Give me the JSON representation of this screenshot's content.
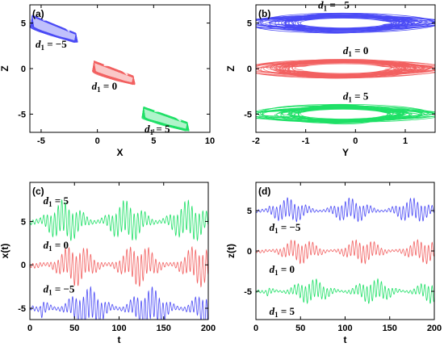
{
  "figure": {
    "panels": [
      "(a)",
      "(b)",
      "(c)",
      "(d)"
    ]
  },
  "colors": {
    "blue": "#4a4af5",
    "red": "#f26060",
    "green": "#1ee066"
  },
  "chart_data": [
    {
      "id": "a",
      "type": "scatter",
      "panel_label": "(a)",
      "xlabel": "X",
      "ylabel": "Z",
      "xlim": [
        -6,
        10
      ],
      "ylim": [
        -7,
        7
      ],
      "xticks": [
        -5,
        0,
        5,
        10
      ],
      "yticks": [
        -5,
        0,
        5
      ],
      "series": [
        {
          "name": "d1 = -5",
          "color": "#4a4af5",
          "center": [
            -3.8,
            5
          ],
          "x_range": [
            -5.8,
            -1.9
          ],
          "z_range": [
            3.0,
            6.6
          ]
        },
        {
          "name": "d1 = 0",
          "color": "#f26060",
          "center": [
            1.5,
            0
          ],
          "x_range": [
            -0.3,
            3.2
          ],
          "z_range": [
            -1.6,
            1.4
          ]
        },
        {
          "name": "d1 = 5",
          "color": "#1ee066",
          "center": [
            6.2,
            -5
          ],
          "x_range": [
            4.1,
            8.0
          ],
          "z_range": [
            -6.7,
            -3.6
          ]
        }
      ],
      "annotations": [
        {
          "text": "d1 = −5",
          "at": [
            -5.5,
            2.3
          ]
        },
        {
          "text": "d1 = 0",
          "at": [
            -0.5,
            -2.3
          ]
        },
        {
          "text": "d1 = 5",
          "at": [
            4.2,
            -7.0
          ]
        }
      ]
    },
    {
      "id": "b",
      "type": "line",
      "panel_label": "(b)",
      "xlabel": "Y",
      "ylabel": "Z",
      "xlim": [
        -2,
        1.6
      ],
      "ylim": [
        -7,
        7
      ],
      "xticks": [
        -2,
        -1,
        0,
        1
      ],
      "yticks": [
        -5,
        0,
        5
      ],
      "series": [
        {
          "name": "d1 = -5",
          "color": "#4a4af5",
          "z_center": 5,
          "y_range": [
            -1.75,
            1.3
          ]
        },
        {
          "name": "d1 = 0",
          "color": "#f26060",
          "z_center": 0,
          "y_range": [
            -1.75,
            1.3
          ]
        },
        {
          "name": "d1 = 5",
          "color": "#1ee066",
          "z_center": -5,
          "y_range": [
            -1.75,
            1.3
          ]
        }
      ],
      "annotations": [
        {
          "text": "d1 = −5",
          "at": [
            -0.75,
            6.6
          ]
        },
        {
          "text": "d1 = 0",
          "at": [
            -0.25,
            1.6
          ]
        },
        {
          "text": "d1 = 5",
          "at": [
            -0.25,
            -3.4
          ]
        }
      ]
    },
    {
      "id": "c",
      "type": "line",
      "panel_label": "(c)",
      "xlabel": "t",
      "ylabel": "x(t)",
      "xlim": [
        0,
        200
      ],
      "ylim": [
        -6.3,
        9.5
      ],
      "xticks": [
        0,
        50,
        100,
        150,
        200
      ],
      "yticks": [
        -5,
        0,
        5
      ],
      "series": [
        {
          "name": "d1 = 5",
          "color": "#1ee066",
          "offset": 5,
          "amplitude": 2.2
        },
        {
          "name": "d1 = 0",
          "color": "#f26060",
          "offset": 0,
          "amplitude": 2.2
        },
        {
          "name": "d1 = -5",
          "color": "#4a4af5",
          "offset": -5,
          "amplitude": 2.2
        }
      ],
      "annotations": [
        {
          "text": "d1 = 5",
          "at": [
            15,
            7.0
          ]
        },
        {
          "text": "d1 = 0",
          "at": [
            15,
            1.9
          ]
        },
        {
          "text": "d1 = −5",
          "at": [
            15,
            -3.2
          ]
        }
      ]
    },
    {
      "id": "d",
      "type": "line",
      "panel_label": "(d)",
      "xlabel": "t",
      "ylabel": "z(t)",
      "xlim": [
        0,
        200
      ],
      "ylim": [
        -8.5,
        8.5
      ],
      "xticks": [
        0,
        50,
        100,
        150,
        200
      ],
      "yticks": [
        -5,
        0,
        5
      ],
      "series": [
        {
          "name": "d1 = -5",
          "color": "#4a4af5",
          "offset": 5,
          "amplitude": 1.4
        },
        {
          "name": "d1 = 0",
          "color": "#f26060",
          "offset": 0,
          "amplitude": 1.4
        },
        {
          "name": "d1 = 5",
          "color": "#1ee066",
          "offset": -5,
          "amplitude": 1.4
        }
      ],
      "annotations": [
        {
          "text": "d1 = −5",
          "at": [
            15,
            2.5
          ]
        },
        {
          "text": "d1 = 0",
          "at": [
            15,
            -2.7
          ]
        },
        {
          "text": "d1 = 5",
          "at": [
            15,
            -7.9
          ]
        }
      ]
    }
  ]
}
